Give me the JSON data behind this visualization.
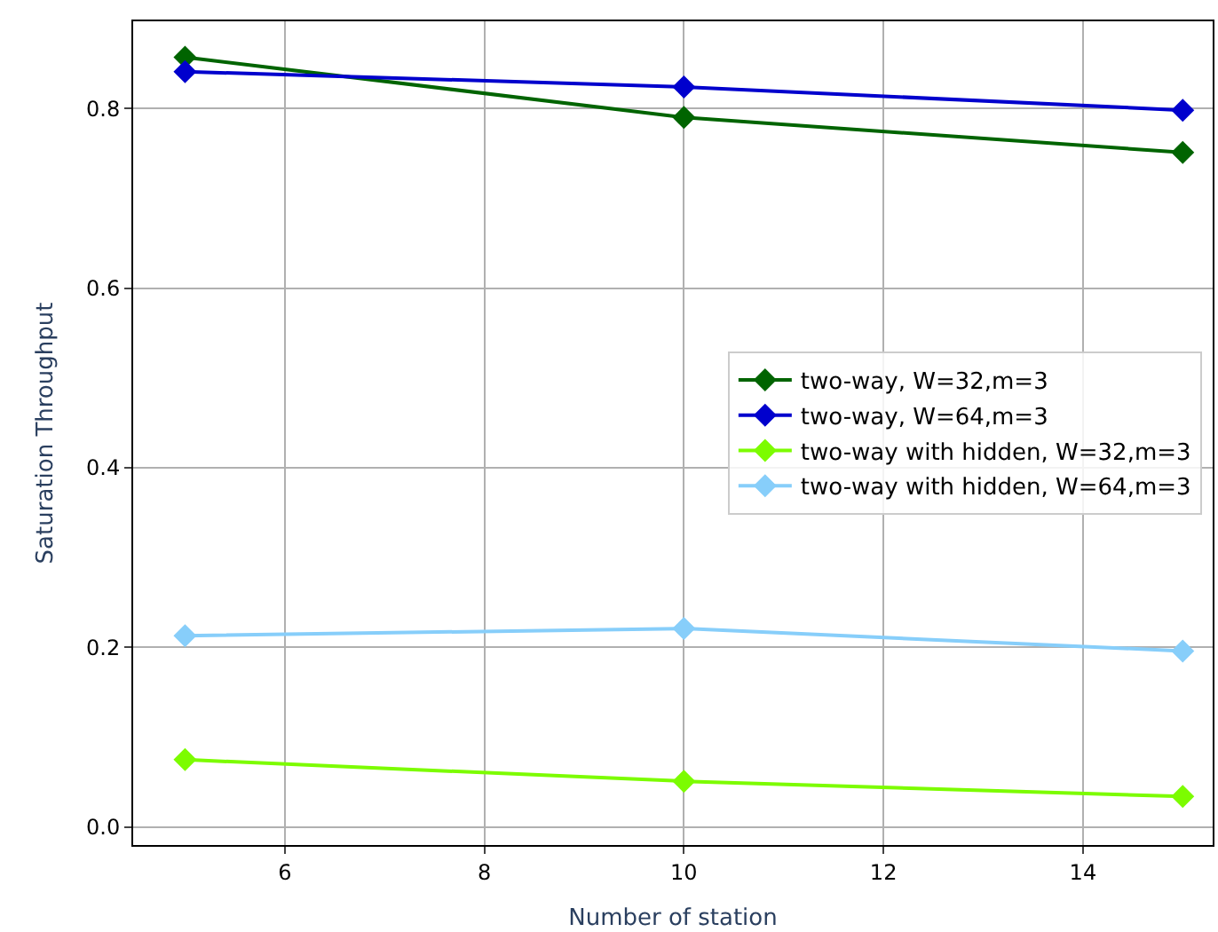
{
  "chart_data": {
    "type": "line",
    "xlabel": "Number of station",
    "ylabel": "Saturation Throughput",
    "x": [
      5,
      10,
      15
    ],
    "series": [
      {
        "name": "two-way, W=32,m=3",
        "color": "#006400",
        "values": [
          0.857,
          0.79,
          0.751
        ]
      },
      {
        "name": "two-way, W=64,m=3",
        "color": "#0000cd",
        "values": [
          0.841,
          0.824,
          0.798
        ]
      },
      {
        "name": "two-way with hidden, W=32,m=3",
        "color": "#7cfc00",
        "values": [
          0.075,
          0.051,
          0.034
        ]
      },
      {
        "name": "two-way with hidden, W=64,m=3",
        "color": "#87cefa",
        "values": [
          0.213,
          0.221,
          0.196
        ]
      }
    ],
    "xlim": [
      4.48,
      15.3
    ],
    "ylim": [
      -0.02,
      0.897
    ],
    "xticks": [
      6,
      8,
      10,
      12,
      14
    ],
    "yticks": [
      {
        "value": 0,
        "label": "0.0"
      },
      0.2,
      0.4,
      0.6,
      0.8
    ],
    "grid": true,
    "legend": "right",
    "marker": "diamond",
    "line_style": "solid"
  }
}
